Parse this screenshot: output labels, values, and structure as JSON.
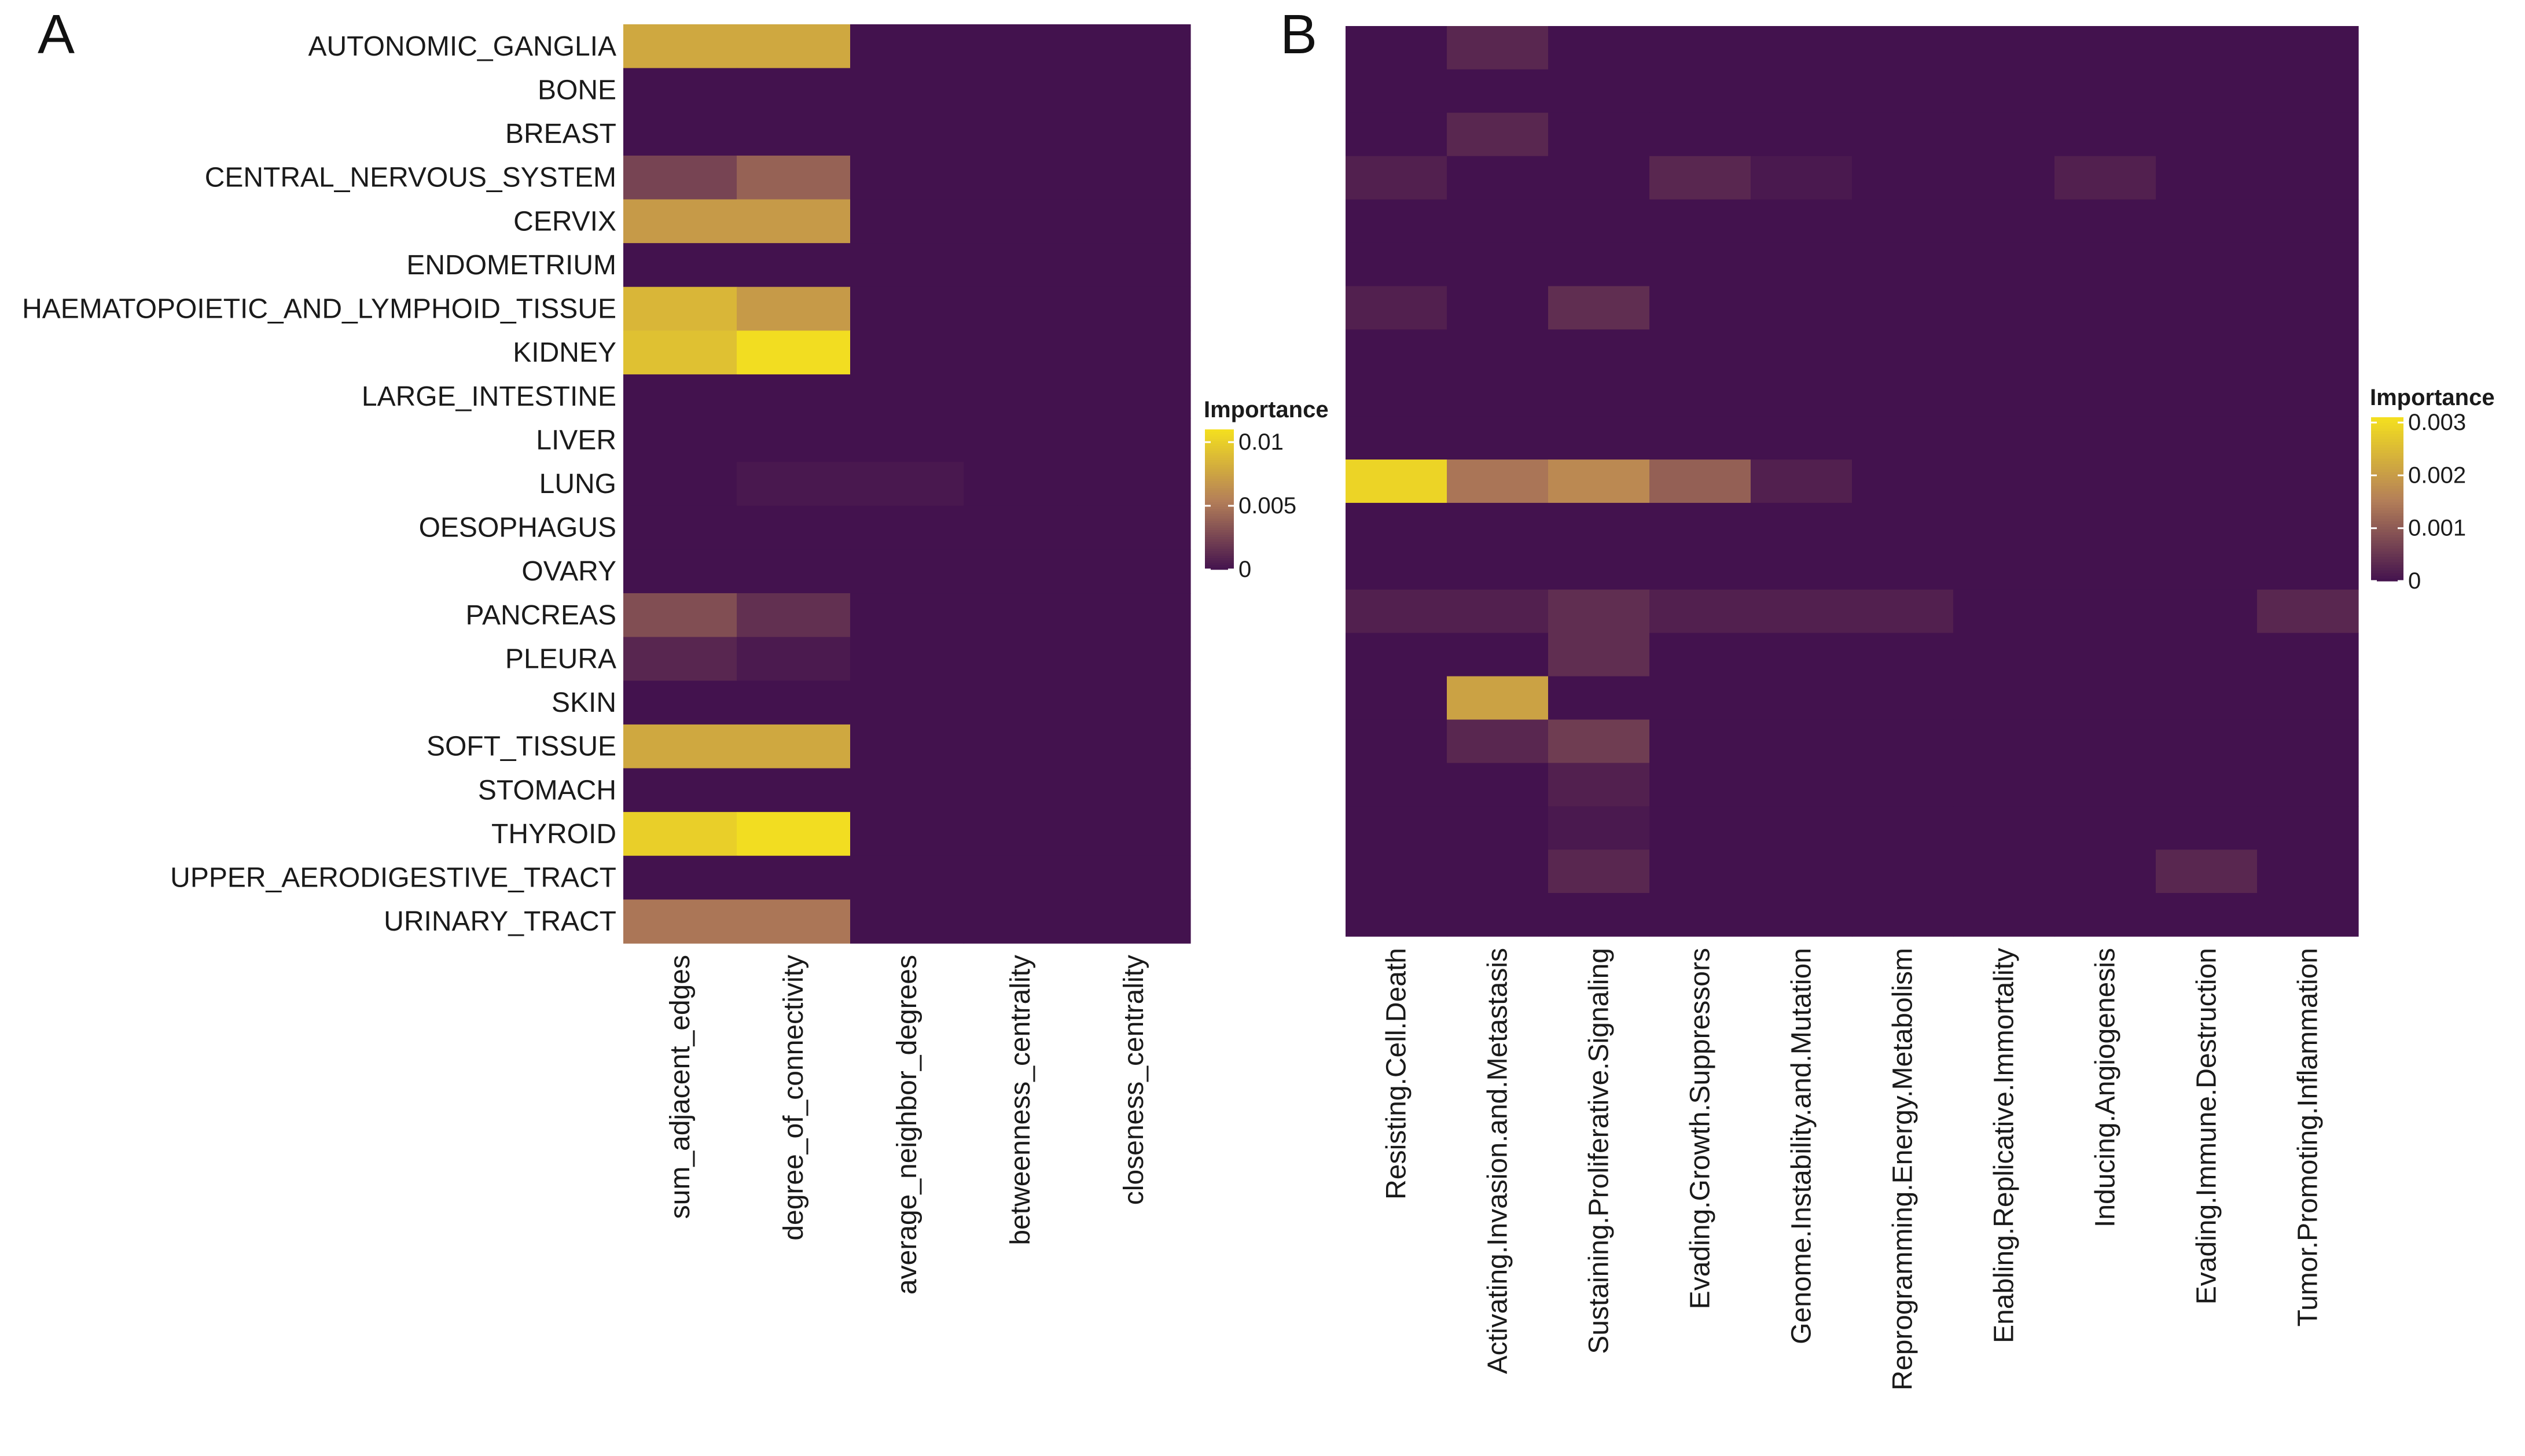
{
  "colors": {
    "low": "#43124e",
    "mid": "#b58058",
    "high": "#f4e01f"
  },
  "chart_data": [
    {
      "type": "heatmap",
      "panel": "A",
      "title": "",
      "xlabel": "",
      "ylabel": "",
      "rows": [
        "AUTONOMIC_GANGLIA",
        "BONE",
        "BREAST",
        "CENTRAL_NERVOUS_SYSTEM",
        "CERVIX",
        "ENDOMETRIUM",
        "HAEMATOPOIETIC_AND_LYMPHOID_TISSUE",
        "KIDNEY",
        "LARGE_INTESTINE",
        "LIVER",
        "LUNG",
        "OESOPHAGUS",
        "OVARY",
        "PANCREAS",
        "PLEURA",
        "SKIN",
        "SOFT_TISSUE",
        "STOMACH",
        "THYROID",
        "UPPER_AERODIGESTIVE_TRACT",
        "URINARY_TRACT"
      ],
      "columns": [
        "sum_adjacent_edges",
        "degree_of_connectivity",
        "average_neighbor_degrees",
        "betweenness_centrality",
        "closeness_centrality"
      ],
      "values": [
        [
          0.0078,
          0.0078,
          0,
          0,
          0
        ],
        [
          0,
          0,
          0,
          0,
          0
        ],
        [
          0,
          0,
          0,
          0,
          0
        ],
        [
          0.0025,
          0.004,
          0,
          0,
          0
        ],
        [
          0.007,
          0.007,
          0,
          0,
          0
        ],
        [
          0,
          0,
          0,
          0,
          0
        ],
        [
          0.0086,
          0.007,
          0,
          0,
          0
        ],
        [
          0.0092,
          0.0108,
          0,
          0,
          0
        ],
        [
          0,
          0,
          0,
          0,
          0
        ],
        [
          0,
          0,
          0,
          0,
          0
        ],
        [
          0,
          0.0003,
          0.0003,
          0,
          0
        ],
        [
          0,
          0,
          0,
          0,
          0
        ],
        [
          0,
          0,
          0,
          0,
          0
        ],
        [
          0.003,
          0.0015,
          0,
          0,
          0
        ],
        [
          0.001,
          0.0004,
          0,
          0,
          0
        ],
        [
          0,
          0,
          0,
          0,
          0
        ],
        [
          0.0078,
          0.0078,
          0,
          0,
          0
        ],
        [
          0,
          0,
          0,
          0,
          0
        ],
        [
          0.01,
          0.0108,
          0,
          0,
          0
        ],
        [
          0,
          0,
          0,
          0,
          0
        ],
        [
          0.005,
          0.005,
          0,
          0,
          0
        ]
      ],
      "legend": {
        "title": "Importance",
        "ticks": [
          "0.01",
          "0.005",
          "0"
        ],
        "range": [
          0,
          0.011
        ]
      }
    },
    {
      "type": "heatmap",
      "panel": "B",
      "title": "",
      "xlabel": "",
      "ylabel": "",
      "rows": [
        "AUTONOMIC_GANGLIA",
        "BONE",
        "BREAST",
        "CENTRAL_NERVOUS_SYSTEM",
        "CERVIX",
        "ENDOMETRIUM",
        "HAEMATOPOIETIC_AND_LYMPHOID_TISSUE",
        "KIDNEY",
        "LARGE_INTESTINE",
        "LIVER",
        "LUNG",
        "OESOPHAGUS",
        "OVARY",
        "PANCREAS",
        "PLEURA",
        "SKIN",
        "SOFT_TISSUE",
        "STOMACH",
        "THYROID",
        "UPPER_AERODIGESTIVE_TRACT",
        "URINARY_TRACT"
      ],
      "columns": [
        "Resisting.Cell.Death",
        "Activating.Invasion.and.Metastasis",
        "Sustaining.Proliferative.Signaling",
        "Evading.Growth.Suppressors",
        "Genome.Instability.and.Mutation",
        "Reprogramming.Energy.Metabolism",
        "Enabling.Replicative.Immortality",
        "Inducing.Angiogenesis",
        "Evading.Immune.Destruction",
        "Tumor.Promoting.Inflammation"
      ],
      "values": [
        [
          0,
          0.0003,
          0,
          0,
          0,
          0,
          0,
          0,
          0,
          0
        ],
        [
          0,
          0,
          0,
          0,
          0,
          0,
          0,
          0,
          0,
          0
        ],
        [
          0,
          0.0003,
          0,
          0,
          0,
          0,
          0,
          0,
          0,
          0
        ],
        [
          0.0002,
          0,
          0,
          0.0003,
          0.0001,
          0,
          0,
          0.0002,
          0,
          0
        ],
        [
          0,
          0,
          0,
          0,
          0,
          0,
          0,
          0,
          0,
          0
        ],
        [
          0,
          0,
          0,
          0,
          0,
          0,
          0,
          0,
          0,
          0
        ],
        [
          0.0002,
          0,
          0.0004,
          0,
          0,
          0,
          0,
          0,
          0,
          0
        ],
        [
          0,
          0,
          0,
          0,
          0,
          0,
          0,
          0,
          0,
          0
        ],
        [
          0,
          0,
          0,
          0,
          0,
          0,
          0,
          0,
          0,
          0
        ],
        [
          0,
          0,
          0,
          0,
          0,
          0,
          0,
          0,
          0,
          0
        ],
        [
          0.0029,
          0.0014,
          0.0017,
          0.0011,
          0.0002,
          0,
          0,
          0,
          0,
          0
        ],
        [
          0,
          0,
          0,
          0,
          0,
          0,
          0,
          0,
          0,
          0
        ],
        [
          0,
          0,
          0,
          0,
          0,
          0,
          0,
          0,
          0,
          0
        ],
        [
          0.0002,
          0.0002,
          0.0004,
          0.0002,
          0.0002,
          0.0002,
          0,
          0,
          0,
          0.0003
        ],
        [
          0,
          0,
          0.0004,
          0,
          0,
          0,
          0,
          0,
          0,
          0
        ],
        [
          0,
          0.0021,
          0,
          0,
          0,
          0,
          0,
          0,
          0,
          0
        ],
        [
          0,
          0.0003,
          0.0006,
          0,
          0,
          0,
          0,
          0,
          0,
          0
        ],
        [
          0,
          0,
          0.0002,
          0,
          0,
          0,
          0,
          0,
          0,
          0
        ],
        [
          0,
          0,
          0.0001,
          0,
          0,
          0,
          0,
          0,
          0,
          0
        ],
        [
          0,
          0,
          0.0003,
          0,
          0,
          0,
          0,
          0,
          0.0003,
          0
        ],
        [
          0,
          0,
          0,
          0,
          0,
          0,
          0,
          0,
          0,
          0
        ]
      ],
      "legend": {
        "title": "Importance",
        "ticks": [
          "0.003",
          "0.002",
          "0.001",
          "0"
        ],
        "range": [
          0,
          0.0031
        ]
      }
    }
  ]
}
